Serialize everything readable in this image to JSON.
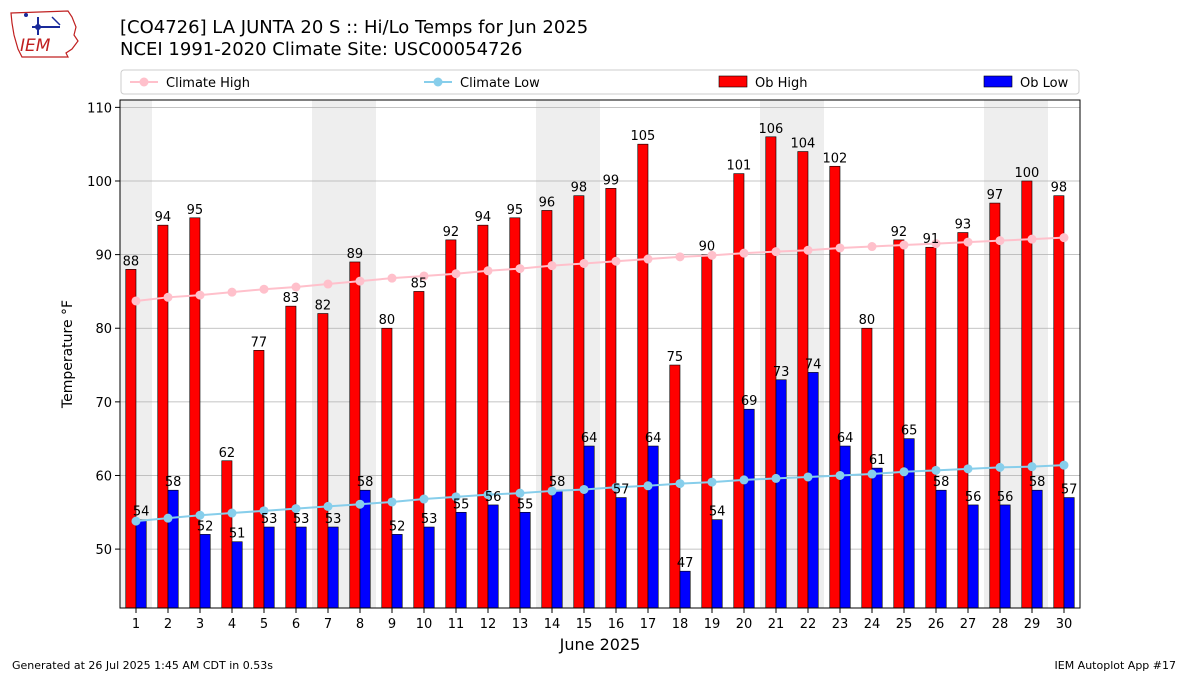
{
  "header": {
    "title_line1": "[CO4726] LA JUNTA 20 S :: Hi/Lo Temps for Jun 2025",
    "title_line2": "NCEI 1991-2020 Climate Site: USC00054726",
    "logo_text": "IEM"
  },
  "footer": {
    "generated": "Generated at 26 Jul 2025 1:45 AM CDT in 0.53s",
    "app": "IEM Autoplot App #17"
  },
  "colors": {
    "ob_high": "#ff0000",
    "ob_low": "#0000ff",
    "climate_high": "#ffc0cb",
    "climate_low": "#87ceeb",
    "weekend_shade": "#eeeeee",
    "grid": "#b0b0b0"
  },
  "chart_data": {
    "type": "bar",
    "title": "[CO4726] LA JUNTA 20 S :: Hi/Lo Temps for Jun 2025",
    "subtitle": "NCEI 1991-2020 Climate Site: USC00054726",
    "xlabel": "June 2025",
    "ylabel": "Temperature °F",
    "ylim": [
      42,
      111
    ],
    "yticks": [
      50,
      60,
      70,
      80,
      90,
      100,
      110
    ],
    "grid": "horizontal",
    "legend_position": "top",
    "legend": [
      "Climate High",
      "Climate Low",
      "Ob High",
      "Ob Low"
    ],
    "categories": [
      "1",
      "2",
      "3",
      "4",
      "5",
      "6",
      "7",
      "8",
      "9",
      "10",
      "11",
      "12",
      "13",
      "14",
      "15",
      "16",
      "17",
      "18",
      "19",
      "20",
      "21",
      "22",
      "23",
      "24",
      "25",
      "26",
      "27",
      "28",
      "29",
      "30"
    ],
    "shaded_days": [
      1,
      7,
      8,
      14,
      15,
      21,
      22,
      28,
      29
    ],
    "series": [
      {
        "name": "Ob High",
        "kind": "bar",
        "values": [
          88,
          94,
          95,
          62,
          77,
          83,
          82,
          89,
          80,
          85,
          92,
          94,
          95,
          96,
          98,
          99,
          105,
          75,
          90,
          101,
          106,
          104,
          102,
          80,
          92,
          91,
          93,
          97,
          100,
          98
        ]
      },
      {
        "name": "Ob Low",
        "kind": "bar",
        "values": [
          54,
          58,
          52,
          51,
          53,
          53,
          53,
          58,
          52,
          53,
          55,
          56,
          55,
          58,
          64,
          57,
          64,
          47,
          54,
          69,
          73,
          74,
          64,
          61,
          65,
          58,
          56,
          56,
          58,
          57
        ]
      },
      {
        "name": "Climate High",
        "kind": "line",
        "values": [
          83.7,
          84.2,
          84.5,
          84.9,
          85.3,
          85.6,
          86.0,
          86.4,
          86.8,
          87.1,
          87.4,
          87.8,
          88.1,
          88.5,
          88.8,
          89.1,
          89.4,
          89.7,
          89.9,
          90.2,
          90.4,
          90.6,
          90.9,
          91.1,
          91.3,
          91.5,
          91.7,
          91.9,
          92.1,
          92.3
        ]
      },
      {
        "name": "Climate Low",
        "kind": "line",
        "values": [
          53.8,
          54.2,
          54.6,
          54.9,
          55.2,
          55.5,
          55.8,
          56.1,
          56.4,
          56.8,
          57.1,
          57.4,
          57.6,
          57.9,
          58.1,
          58.4,
          58.6,
          58.9,
          59.1,
          59.4,
          59.6,
          59.8,
          60.0,
          60.2,
          60.5,
          60.7,
          60.9,
          61.1,
          61.2,
          61.4
        ]
      }
    ]
  }
}
